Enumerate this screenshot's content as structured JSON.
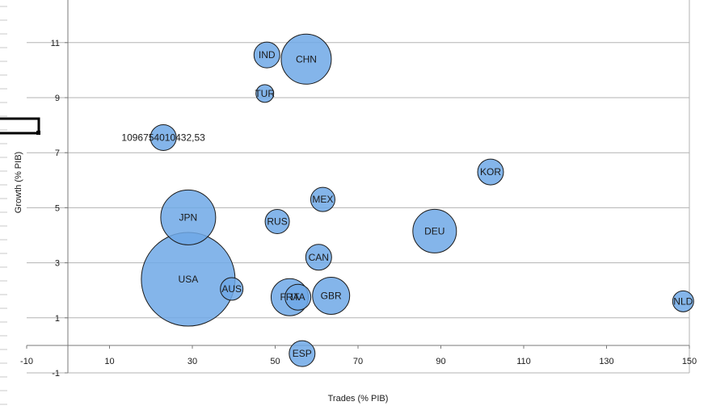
{
  "chart_data": {
    "type": "bubble",
    "xlabel": "Trades (% PIB)",
    "ylabel": "Growth (% PIB)",
    "xlim": [
      -10,
      150
    ],
    "ylim": [
      -1,
      12
    ],
    "x_ticks": [
      -10,
      10,
      30,
      50,
      70,
      90,
      110,
      130,
      150
    ],
    "y_ticks": [
      -1,
      1,
      3,
      5,
      7,
      9,
      11
    ],
    "grid": "horizontal",
    "color": "#6fa8e6",
    "points": [
      {
        "label": "USA",
        "x": 29,
        "y": 2.4,
        "r": 58
      },
      {
        "label": "CHN",
        "x": 57.5,
        "y": 10.4,
        "r": 31
      },
      {
        "label": "JPN",
        "x": 29,
        "y": 4.65,
        "r": 34
      },
      {
        "label": "DEU",
        "x": 88.5,
        "y": 4.15,
        "r": 27
      },
      {
        "label": "GBR",
        "x": 63.5,
        "y": 1.8,
        "r": 23
      },
      {
        "label": "FRA",
        "x": 53.5,
        "y": 1.75,
        "r": 23
      },
      {
        "label": "ITA",
        "x": 55.5,
        "y": 1.75,
        "r": 16
      },
      {
        "label": "IND",
        "x": 48,
        "y": 10.55,
        "r": 16
      },
      {
        "label": "TUR",
        "x": 47.5,
        "y": 9.15,
        "r": 11
      },
      {
        "label": "10967540104​32,53",
        "x": 23,
        "y": 7.55,
        "r": 16
      },
      {
        "label": "KOR",
        "x": 102,
        "y": 6.3,
        "r": 16
      },
      {
        "label": "MEX",
        "x": 61.5,
        "y": 5.3,
        "r": 15
      },
      {
        "label": "RUS",
        "x": 50.5,
        "y": 4.5,
        "r": 15
      },
      {
        "label": "CAN",
        "x": 60.5,
        "y": 3.2,
        "r": 16
      },
      {
        "label": "AUS",
        "x": 39.5,
        "y": 2.05,
        "r": 14
      },
      {
        "label": "NLD",
        "x": 148.5,
        "y": 1.6,
        "r": 13
      },
      {
        "label": "ESP",
        "x": 56.5,
        "y": -0.3,
        "r": 16
      }
    ]
  }
}
